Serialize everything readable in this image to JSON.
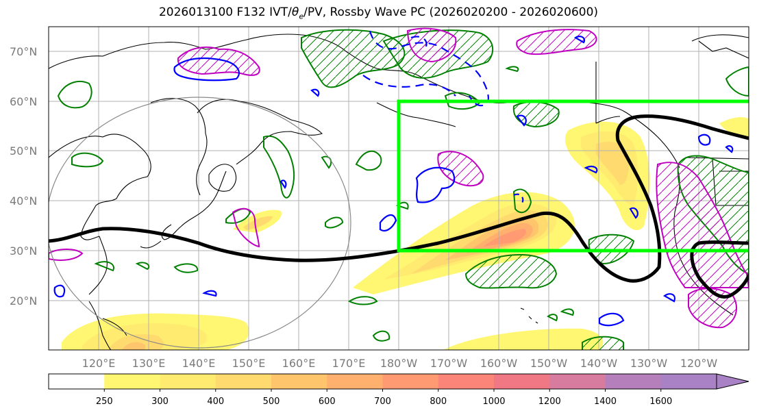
{
  "title": {
    "prefix": "2026013100 F132 IVT/",
    "theta": "θ",
    "theta_sub": "e",
    "suffix": "/PV, Rossby Wave PC (2026020200 - 2026020600)"
  },
  "map": {
    "lat_labels": [
      "70°N",
      "60°N",
      "50°N",
      "40°N",
      "30°N",
      "20°N"
    ],
    "lat_values": [
      70,
      60,
      50,
      40,
      30,
      20
    ],
    "lon_labels": [
      "120°E",
      "130°E",
      "140°E",
      "150°E",
      "160°E",
      "170°E",
      "180°W",
      "170°W",
      "160°W",
      "150°W",
      "140°W",
      "130°W",
      "120°W"
    ],
    "lon_values": [
      120,
      130,
      140,
      150,
      160,
      170,
      180,
      190,
      200,
      210,
      220,
      230,
      240
    ],
    "lat_range": [
      10,
      75
    ],
    "lon_range": [
      110,
      250
    ],
    "grid": true
  },
  "colorbar": {
    "labels": [
      "250",
      "300",
      "400",
      "500",
      "600",
      "700",
      "800",
      "1000",
      "1200",
      "1400",
      "1600"
    ],
    "colors": [
      "#ffffff",
      "#fff772",
      "#ffeb70",
      "#ffda6e",
      "#ffc56c",
      "#ffb06e",
      "#ff9a72",
      "#fb8578",
      "#ef7884",
      "#d87c9f",
      "#b47fba",
      "#a982c6"
    ],
    "extend": "max"
  },
  "colors": {
    "box": "#00ff00",
    "jet": "#000000",
    "pv_neg": "#0000ff",
    "pv_pos": "#c000c0",
    "theta_e": "#008000",
    "coast": "#000000",
    "circle": "#888888"
  }
}
